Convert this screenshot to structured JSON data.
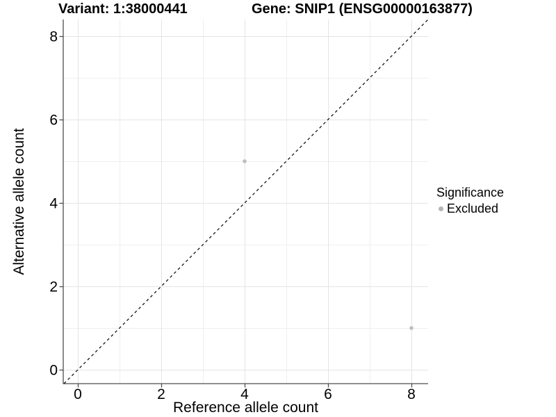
{
  "titles": {
    "variant": "Variant: 1:38000441",
    "gene": "Gene: SNIP1 (ENSG00000163877)"
  },
  "axes": {
    "x_label": "Reference allele count",
    "y_label": "Alternative allele count"
  },
  "legend": {
    "title": "Significance",
    "items": [
      {
        "label": "Excluded",
        "color": "#b5b5b5"
      }
    ]
  },
  "colors": {
    "background": "#ffffff",
    "axis_line": "#4d4d4d",
    "grid_major": "#e4e4e4",
    "grid_minor": "#efefef",
    "point": "#bebebe",
    "reference_line": "#000000",
    "text": "#000000"
  },
  "chart_data": {
    "type": "scatter",
    "title_left": "Variant: 1:38000441",
    "title_right": "Gene: SNIP1 (ENSG00000163877)",
    "xlabel": "Reference allele count",
    "ylabel": "Alternative allele count",
    "xlim": [
      -0.35,
      8.4
    ],
    "ylim": [
      -0.333,
      8.4
    ],
    "x_ticks": [
      0,
      2,
      4,
      6,
      8
    ],
    "y_ticks": [
      0,
      2,
      4,
      6,
      8
    ],
    "x_minor": [
      1,
      3,
      5,
      7
    ],
    "y_minor": [
      1,
      3,
      5,
      7
    ],
    "grid": "major+minor",
    "legend_position": "right",
    "series": [
      {
        "name": "Excluded",
        "color": "#bebebe",
        "points": [
          {
            "x": 4,
            "y": 5
          },
          {
            "x": 8,
            "y": 1
          }
        ]
      }
    ],
    "reference_line": {
      "equation": "y = x",
      "style": "dashed",
      "color": "#000000"
    }
  }
}
